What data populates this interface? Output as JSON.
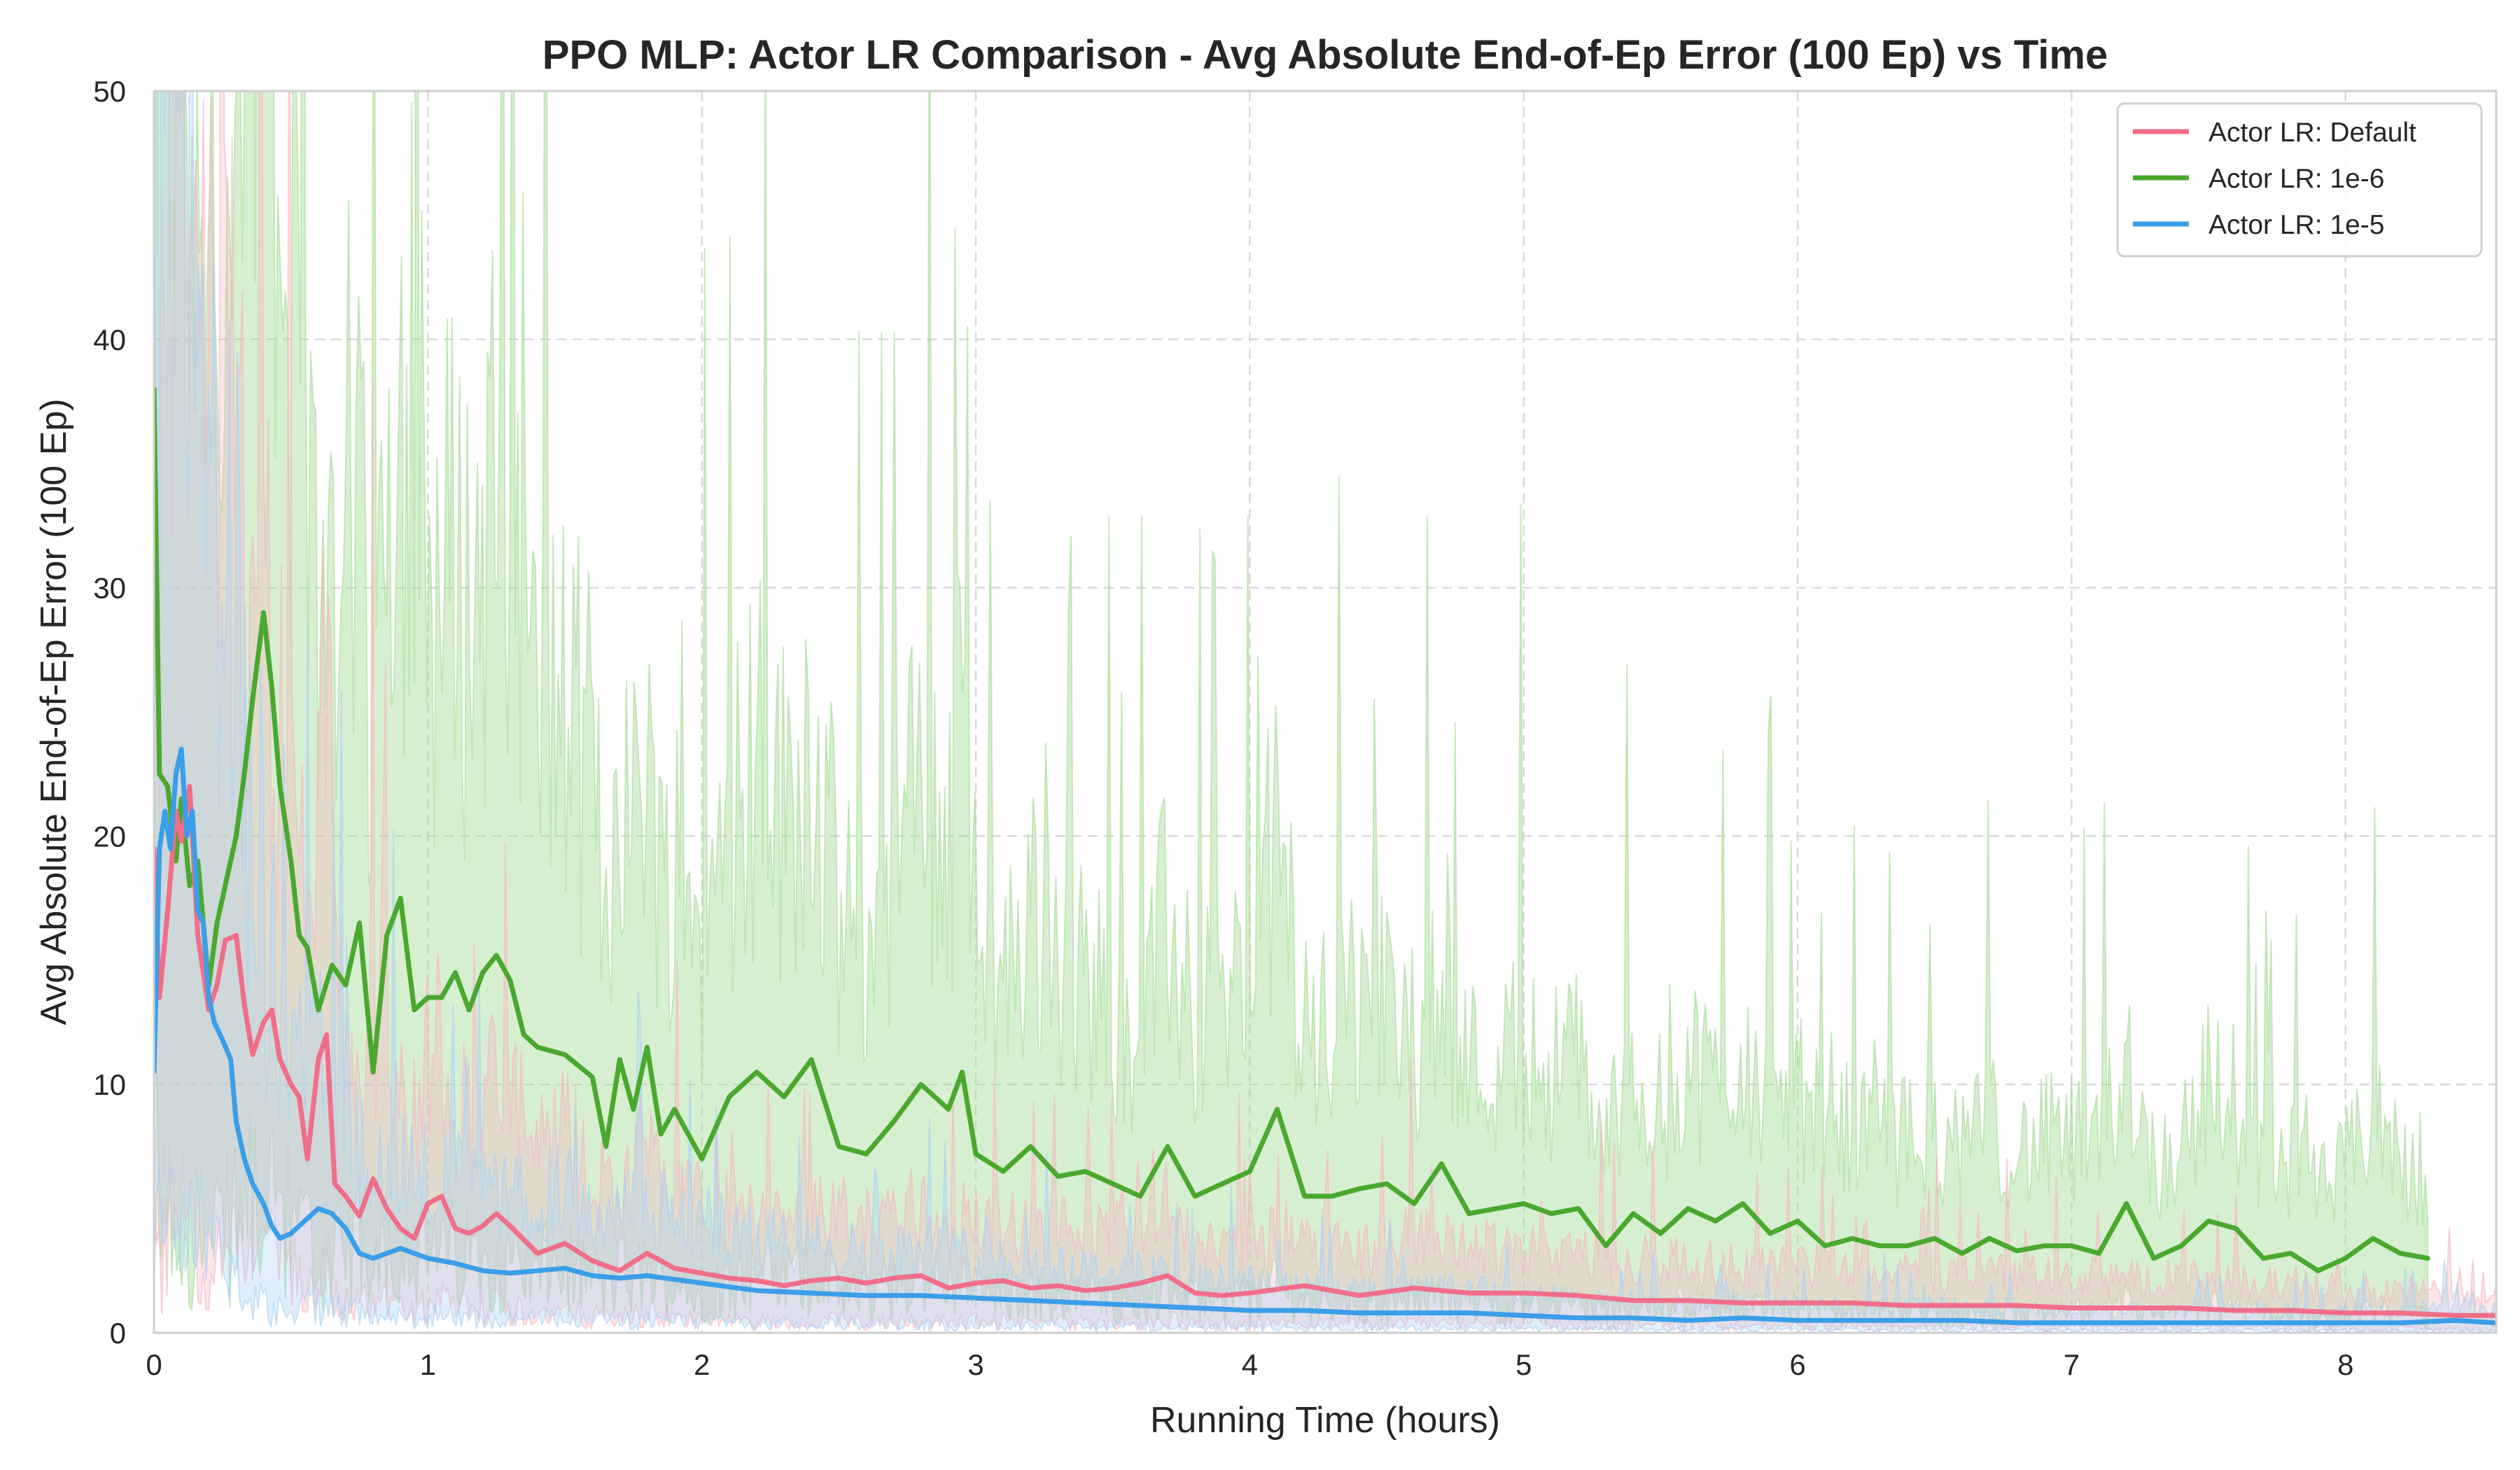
{
  "chart_data": {
    "type": "line",
    "title": "PPO MLP: Actor LR Comparison - Avg Absolute End-of-Ep Error (100 Ep) vs Time",
    "xlabel": "Running Time (hours)",
    "ylabel": "Avg Absolute End-of-Ep Error (100 Ep)",
    "xlim": [
      0,
      8.55
    ],
    "ylim": [
      0,
      50
    ],
    "x_ticks": [
      0,
      1,
      2,
      3,
      4,
      5,
      6,
      7,
      8
    ],
    "y_ticks": [
      0,
      10,
      20,
      30,
      40,
      50
    ],
    "grid": true,
    "legend_position": "top-right",
    "shaded_band": "raw per-episode error range",
    "series": [
      {
        "name": "Actor LR: Default",
        "color": "#f06e88",
        "band_color": "#f7b6c2",
        "x": [
          0,
          0.02,
          0.05,
          0.08,
          0.1,
          0.13,
          0.16,
          0.2,
          0.23,
          0.26,
          0.3,
          0.33,
          0.36,
          0.4,
          0.43,
          0.46,
          0.5,
          0.53,
          0.56,
          0.6,
          0.63,
          0.66,
          0.7,
          0.75,
          0.8,
          0.85,
          0.9,
          0.95,
          1.0,
          1.05,
          1.1,
          1.15,
          1.2,
          1.25,
          1.3,
          1.4,
          1.5,
          1.6,
          1.7,
          1.8,
          1.9,
          2.0,
          2.1,
          2.2,
          2.3,
          2.4,
          2.5,
          2.6,
          2.7,
          2.8,
          2.9,
          3.0,
          3.1,
          3.2,
          3.3,
          3.4,
          3.5,
          3.6,
          3.7,
          3.8,
          3.9,
          4.0,
          4.2,
          4.4,
          4.6,
          4.8,
          5.0,
          5.2,
          5.4,
          5.6,
          5.8,
          6.0,
          6.2,
          6.4,
          6.6,
          6.8,
          7.0,
          7.2,
          7.4,
          7.6,
          7.8,
          8.0,
          8.2,
          8.4,
          8.55
        ],
        "y": [
          19.5,
          13.5,
          17.0,
          21.0,
          19.8,
          22.0,
          16.0,
          13.0,
          14.0,
          15.8,
          16.0,
          13.2,
          11.2,
          12.5,
          13.0,
          11.0,
          10.0,
          9.5,
          7.0,
          11.0,
          12.0,
          6.0,
          5.5,
          4.7,
          6.2,
          5.0,
          4.2,
          3.8,
          5.2,
          5.5,
          4.2,
          4.0,
          4.3,
          4.8,
          4.3,
          3.2,
          3.6,
          2.9,
          2.5,
          3.2,
          2.6,
          2.4,
          2.2,
          2.1,
          1.9,
          2.1,
          2.2,
          2.0,
          2.2,
          2.3,
          1.8,
          2.0,
          2.1,
          1.8,
          1.9,
          1.7,
          1.8,
          2.0,
          2.3,
          1.6,
          1.5,
          1.6,
          1.9,
          1.5,
          1.8,
          1.6,
          1.6,
          1.5,
          1.3,
          1.3,
          1.2,
          1.2,
          1.2,
          1.1,
          1.1,
          1.1,
          1.0,
          1.0,
          1.0,
          0.9,
          0.9,
          0.8,
          0.8,
          0.7,
          0.7
        ]
      },
      {
        "name": "Actor LR: 1e-6",
        "color": "#4aa82f",
        "band_color": "#a7dc98",
        "x": [
          0,
          0.02,
          0.05,
          0.08,
          0.1,
          0.13,
          0.16,
          0.2,
          0.23,
          0.26,
          0.3,
          0.33,
          0.36,
          0.4,
          0.43,
          0.46,
          0.5,
          0.53,
          0.56,
          0.6,
          0.65,
          0.7,
          0.75,
          0.8,
          0.85,
          0.9,
          0.95,
          1.0,
          1.05,
          1.1,
          1.15,
          1.2,
          1.25,
          1.3,
          1.35,
          1.4,
          1.5,
          1.6,
          1.65,
          1.7,
          1.75,
          1.8,
          1.85,
          1.9,
          2.0,
          2.1,
          2.2,
          2.3,
          2.4,
          2.5,
          2.6,
          2.7,
          2.8,
          2.9,
          2.95,
          3.0,
          3.1,
          3.2,
          3.3,
          3.4,
          3.5,
          3.6,
          3.7,
          3.8,
          3.9,
          4.0,
          4.1,
          4.2,
          4.3,
          4.4,
          4.5,
          4.6,
          4.7,
          4.8,
          4.9,
          5.0,
          5.1,
          5.2,
          5.3,
          5.4,
          5.5,
          5.6,
          5.7,
          5.8,
          5.9,
          6.0,
          6.1,
          6.2,
          6.3,
          6.4,
          6.5,
          6.6,
          6.7,
          6.8,
          6.9,
          7.0,
          7.1,
          7.2,
          7.3,
          7.4,
          7.5,
          7.6,
          7.7,
          7.8,
          7.9,
          8.0,
          8.1,
          8.2,
          8.3
        ],
        "y": [
          38.0,
          22.5,
          22.0,
          19.0,
          21.5,
          18.0,
          19.0,
          14.0,
          16.5,
          18.0,
          20.0,
          22.5,
          25.5,
          29.0,
          26.0,
          22.0,
          19.0,
          16.0,
          15.5,
          13.0,
          14.8,
          14.0,
          16.5,
          10.5,
          16.0,
          17.5,
          13.0,
          13.5,
          13.5,
          14.5,
          13.0,
          14.5,
          15.2,
          14.2,
          12.0,
          11.5,
          11.2,
          10.3,
          7.5,
          11.0,
          9.0,
          11.5,
          8.0,
          9.0,
          7.0,
          9.5,
          10.5,
          9.5,
          11.0,
          7.5,
          7.2,
          8.5,
          10.0,
          9.0,
          10.5,
          7.2,
          6.5,
          7.5,
          6.3,
          6.5,
          6.0,
          5.5,
          7.5,
          5.5,
          6.0,
          6.5,
          9.0,
          5.5,
          5.5,
          5.8,
          6.0,
          5.2,
          6.8,
          4.8,
          5.0,
          5.2,
          4.8,
          5.0,
          3.5,
          4.8,
          4.0,
          5.0,
          4.5,
          5.2,
          4.0,
          4.5,
          3.5,
          3.8,
          3.5,
          3.5,
          3.8,
          3.2,
          3.8,
          3.3,
          3.5,
          3.5,
          3.2,
          5.2,
          3.0,
          3.5,
          4.5,
          4.2,
          3.0,
          3.2,
          2.5,
          3.0,
          3.8,
          3.2,
          3.0
        ]
      },
      {
        "name": "Actor LR: 1e-5",
        "color": "#3a9ee8",
        "band_color": "#a9d2f3",
        "x": [
          0,
          0.02,
          0.04,
          0.06,
          0.08,
          0.1,
          0.12,
          0.14,
          0.16,
          0.18,
          0.2,
          0.22,
          0.25,
          0.28,
          0.3,
          0.33,
          0.36,
          0.4,
          0.43,
          0.46,
          0.5,
          0.55,
          0.6,
          0.65,
          0.7,
          0.75,
          0.8,
          0.9,
          1.0,
          1.1,
          1.2,
          1.3,
          1.4,
          1.5,
          1.6,
          1.7,
          1.8,
          2.0,
          2.2,
          2.4,
          2.6,
          2.8,
          3.0,
          3.2,
          3.4,
          3.6,
          3.8,
          4.0,
          4.2,
          4.4,
          4.6,
          4.8,
          5.0,
          5.2,
          5.4,
          5.6,
          5.8,
          6.0,
          6.2,
          6.4,
          6.6,
          6.8,
          7.0,
          7.2,
          7.4,
          7.6,
          7.8,
          8.0,
          8.2,
          8.4,
          8.55
        ],
        "y": [
          10.5,
          19.5,
          21.0,
          19.5,
          22.5,
          23.5,
          20.0,
          21.0,
          17.0,
          16.5,
          13.5,
          12.5,
          11.8,
          11.0,
          8.5,
          7.0,
          6.0,
          5.2,
          4.3,
          3.8,
          4.0,
          4.5,
          5.0,
          4.8,
          4.2,
          3.2,
          3.0,
          3.4,
          3.0,
          2.8,
          2.5,
          2.4,
          2.5,
          2.6,
          2.3,
          2.2,
          2.3,
          2.0,
          1.7,
          1.6,
          1.5,
          1.5,
          1.4,
          1.3,
          1.2,
          1.1,
          1.0,
          0.9,
          0.9,
          0.8,
          0.8,
          0.8,
          0.7,
          0.6,
          0.6,
          0.5,
          0.6,
          0.5,
          0.5,
          0.5,
          0.5,
          0.4,
          0.4,
          0.4,
          0.4,
          0.4,
          0.4,
          0.4,
          0.4,
          0.5,
          0.4
        ]
      }
    ]
  }
}
